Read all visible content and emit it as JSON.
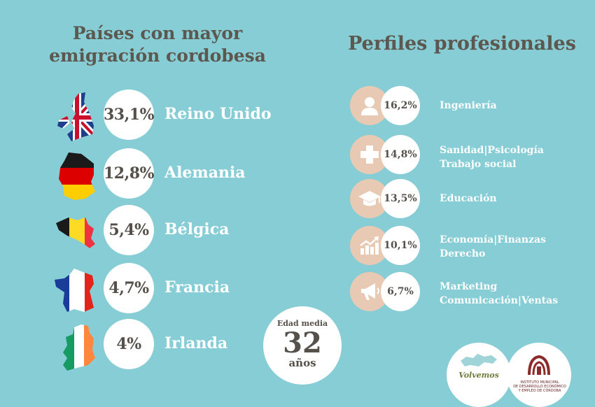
{
  "left_title": [
    "Países con mayor",
    "emigración cordobesa"
  ],
  "right_title": "Perfiles profesionales",
  "countries": [
    {
      "pct": "33,1%",
      "name": "Reino Unido",
      "flag": "uk-map-flag-icon"
    },
    {
      "pct": "12,8%",
      "name": "Alemania",
      "flag": "germany-map-flag-icon"
    },
    {
      "pct": "5,4%",
      "name": "Bélgica",
      "flag": "belgium-map-flag-icon"
    },
    {
      "pct": "4,7%",
      "name": "Francia",
      "flag": "france-map-flag-icon"
    },
    {
      "pct": "4%",
      "name": "Irlanda",
      "flag": "ireland-map-flag-icon"
    }
  ],
  "age": {
    "label": "Edad media",
    "value": "32",
    "unit": "años"
  },
  "profiles": [
    {
      "pct": "16,2%",
      "lines": [
        "Ingeniería"
      ],
      "icon": "person-icon"
    },
    {
      "pct": "14,8%",
      "lines": [
        "Sanidad|Psicología",
        "Trabajo social"
      ],
      "icon": "plus-cross-icon"
    },
    {
      "pct": "13,5%",
      "lines": [
        "Educación"
      ],
      "icon": "graduation-cap-icon"
    },
    {
      "pct": "10,1%",
      "lines": [
        "Economía|Finanzas",
        "Derecho"
      ],
      "icon": "growth-chart-icon"
    },
    {
      "pct": "6,7%",
      "lines": [
        "Marketing",
        "Comunicación|Ventas"
      ],
      "icon": "megaphone-icon"
    }
  ],
  "logos": {
    "volvemos": "Volvemos",
    "imdeec": [
      "INSTITUTO MUNICIPAL",
      "DE DESARROLLO ECONÓMICO",
      "Y EMPLEO DE CÓRDOBA"
    ]
  },
  "colors": {
    "background": "#86cdd6",
    "icon_circle": "#e8cab4",
    "text_dark": "#55504a"
  }
}
